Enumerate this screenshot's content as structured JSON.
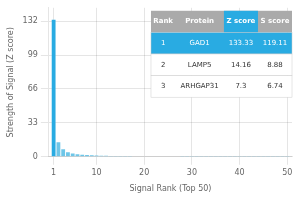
{
  "chart_data": {
    "type": "bar",
    "xlabel": "Signal Rank (Top 50)",
    "ylabel": "Strength of Signal (Z score)",
    "x": [
      1,
      2,
      3,
      4,
      5,
      6,
      7,
      8,
      9,
      10,
      11,
      12,
      13,
      14,
      15,
      16,
      17,
      18,
      19,
      20,
      21,
      22,
      23,
      24,
      25,
      26,
      27,
      28,
      29,
      30,
      31,
      32,
      33,
      34,
      35,
      36,
      37,
      38,
      39,
      40,
      41,
      42,
      43,
      44,
      45,
      46,
      47,
      48,
      49,
      50
    ],
    "values": [
      133.33,
      14.16,
      7.3,
      4.5,
      3.2,
      2.5,
      2.0,
      1.7,
      1.5,
      1.3,
      1.1,
      1.0,
      0.9,
      0.85,
      0.8,
      0.75,
      0.7,
      0.65,
      0.62,
      0.59,
      0.56,
      0.53,
      0.51,
      0.49,
      0.47,
      0.45,
      0.43,
      0.41,
      0.4,
      0.38,
      0.37,
      0.36,
      0.35,
      0.34,
      0.33,
      0.32,
      0.31,
      0.3,
      0.29,
      0.28,
      0.27,
      0.26,
      0.25,
      0.24,
      0.23,
      0.22,
      0.21,
      0.2,
      0.19,
      0.18
    ],
    "colors": [
      "#29ABE2",
      "#6ec6e8",
      "#6ec6e8",
      "#6ec6e8",
      "#6ec6e8",
      "#6ec6e8",
      "#6ec6e8",
      "#6ec6e8",
      "#6ec6e8",
      "#6ec6e8",
      "#6ec6e8",
      "#6ec6e8",
      "#6ec6e8",
      "#6ec6e8",
      "#6ec6e8",
      "#6ec6e8",
      "#6ec6e8",
      "#6ec6e8",
      "#6ec6e8",
      "#6ec6e8",
      "#6ec6e8",
      "#6ec6e8",
      "#6ec6e8",
      "#6ec6e8",
      "#6ec6e8",
      "#6ec6e8",
      "#6ec6e8",
      "#6ec6e8",
      "#6ec6e8",
      "#6ec6e8",
      "#6ec6e8",
      "#6ec6e8",
      "#6ec6e8",
      "#6ec6e8",
      "#6ec6e8",
      "#6ec6e8",
      "#6ec6e8",
      "#6ec6e8",
      "#6ec6e8",
      "#6ec6e8",
      "#6ec6e8",
      "#6ec6e8",
      "#6ec6e8",
      "#6ec6e8",
      "#6ec6e8",
      "#6ec6e8",
      "#6ec6e8",
      "#6ec6e8",
      "#6ec6e8",
      "#6ec6e8"
    ],
    "xlim": [
      0,
      51
    ],
    "ylim": [
      0,
      145
    ],
    "xticks": [
      1,
      10,
      20,
      30,
      40,
      50
    ],
    "yticks": [
      0,
      33,
      66,
      99,
      132
    ],
    "grid": true,
    "table": {
      "columns": [
        "Rank",
        "Protein",
        "Z score",
        "S score"
      ],
      "rows": [
        [
          "1",
          "GAD1",
          "133.33",
          "119.11"
        ],
        [
          "2",
          "LAMP5",
          "14.16",
          "8.88"
        ],
        [
          "3",
          "ARHGAP31",
          "7.3",
          "6.74"
        ]
      ]
    }
  }
}
